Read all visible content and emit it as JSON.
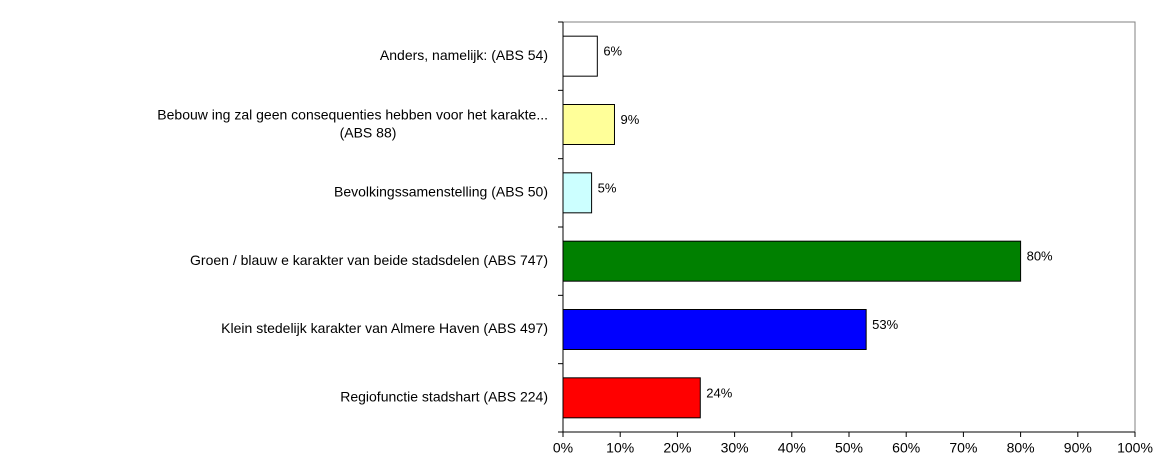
{
  "chart_data": {
    "type": "bar",
    "orientation": "horizontal",
    "categories": [
      "Anders, namelijk: (ABS 54)",
      "Bebouw ing zal geen consequenties hebben voor het karakte...\n(ABS 88)",
      "Bevolkingssamenstelling (ABS 50)",
      "Groen / blauw e karakter van beide stadsdelen (ABS 747)",
      "Klein stedelijk karakter van Almere Haven (ABS 497)",
      "Regiofunctie stadshart (ABS 224)"
    ],
    "values": [
      6,
      9,
      5,
      80,
      53,
      24
    ],
    "value_labels": [
      "6%",
      "9%",
      "5%",
      "80%",
      "53%",
      "24%"
    ],
    "colors": [
      "#ffffff",
      "#ffff99",
      "#ccffff",
      "#008000",
      "#0000ff",
      "#ff0000"
    ],
    "xlim": [
      0,
      100
    ],
    "xticks": [
      {
        "value": 0,
        "label": "0%"
      },
      {
        "value": 10,
        "label": "10%"
      },
      {
        "value": 20,
        "label": "20%"
      },
      {
        "value": 30,
        "label": "30%"
      },
      {
        "value": 40,
        "label": "40%"
      },
      {
        "value": 50,
        "label": "50%"
      },
      {
        "value": 60,
        "label": "60%"
      },
      {
        "value": 70,
        "label": "70%"
      },
      {
        "value": 80,
        "label": "80%"
      },
      {
        "value": 90,
        "label": "90%"
      },
      {
        "value": 100,
        "label": "100%"
      }
    ],
    "grid": false
  }
}
